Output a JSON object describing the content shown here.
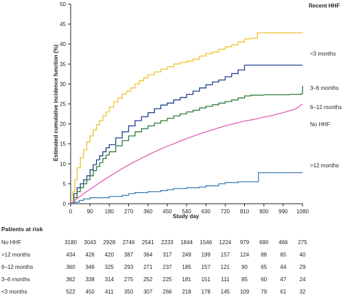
{
  "chart_data": {
    "type": "line",
    "title": "",
    "xlabel": "Study day",
    "ylabel": "Estimated cumulative incidence function (%)",
    "xlim": [
      0,
      1080
    ],
    "ylim": [
      0,
      50
    ],
    "xticks": [
      0,
      90,
      180,
      270,
      360,
      450,
      540,
      630,
      720,
      810,
      900,
      990,
      1080
    ],
    "yticks": [
      0,
      5,
      10,
      15,
      20,
      25,
      30,
      35,
      40,
      45,
      50
    ],
    "grid": false,
    "legend_title": "Recent HHF",
    "legend_placement": "right",
    "series": [
      {
        "name": "<3 months",
        "color": "#f2c12e",
        "step": true,
        "x": [
          0,
          10,
          20,
          30,
          45,
          60,
          75,
          90,
          105,
          120,
          135,
          150,
          165,
          180,
          200,
          220,
          240,
          260,
          280,
          300,
          320,
          340,
          360,
          390,
          420,
          450,
          480,
          510,
          540,
          570,
          600,
          630,
          660,
          690,
          720,
          750,
          780,
          810,
          840,
          870,
          900,
          930,
          960,
          990,
          1020,
          1050,
          1080
        ],
        "y": [
          0,
          3,
          6,
          9,
          11.5,
          13.5,
          15.5,
          17,
          18.5,
          19.8,
          20.8,
          22,
          23,
          24.2,
          25.5,
          26.5,
          27.5,
          28.2,
          29,
          30,
          30.8,
          31.5,
          32.3,
          33,
          33.7,
          34.3,
          35,
          35.4,
          35.7,
          36.2,
          37,
          37.6,
          38,
          38.7,
          39.3,
          39.8,
          40.5,
          41.3,
          41.5,
          42.8,
          42.8,
          42.8,
          42.8,
          42.8,
          42.8,
          42.8,
          42.8
        ]
      },
      {
        "name": "3–6 months",
        "color": "#1f3d8f",
        "step": true,
        "x": [
          0,
          15,
          30,
          45,
          60,
          75,
          90,
          105,
          120,
          135,
          150,
          165,
          180,
          210,
          240,
          270,
          300,
          330,
          360,
          390,
          420,
          450,
          480,
          510,
          540,
          570,
          600,
          630,
          660,
          690,
          720,
          750,
          780,
          810,
          840,
          870,
          900,
          960,
          1020,
          1080
        ],
        "y": [
          0,
          2.5,
          4,
          5,
          6,
          7,
          8.5,
          9.8,
          11,
          12,
          13,
          14,
          14.8,
          16.5,
          18,
          19.5,
          20.8,
          21.8,
          22.8,
          23.8,
          24.7,
          25.2,
          26,
          26.6,
          27.4,
          28.2,
          29,
          29.8,
          30.5,
          31,
          31.8,
          32.6,
          33.5,
          34.7,
          34.7,
          34.7,
          34.7,
          34.7,
          34.7,
          34.7
        ]
      },
      {
        "name": "6–12 months",
        "color": "#2d7a3a",
        "step": true,
        "x": [
          0,
          15,
          30,
          45,
          60,
          75,
          90,
          105,
          120,
          135,
          150,
          165,
          180,
          210,
          240,
          270,
          300,
          330,
          360,
          390,
          420,
          450,
          480,
          510,
          540,
          570,
          600,
          630,
          660,
          690,
          720,
          750,
          780,
          810,
          840,
          870,
          900,
          960,
          1020,
          1075,
          1080
        ],
        "y": [
          0,
          1.5,
          3,
          4,
          5,
          6,
          7,
          8.3,
          9.3,
          10.3,
          11.3,
          12.2,
          13,
          14.5,
          15.8,
          17,
          18,
          18.8,
          19.5,
          20.2,
          20.8,
          21.4,
          22,
          22.5,
          23,
          23.4,
          24,
          24.4,
          24.8,
          25.2,
          25.6,
          26,
          26.5,
          27,
          27.2,
          27.2,
          27.3,
          27.3,
          27.4,
          27.5,
          29.5
        ]
      },
      {
        "name": "No HHF",
        "color": "#e05cb4",
        "step": false,
        "x": [
          0,
          30,
          60,
          90,
          120,
          150,
          180,
          210,
          240,
          270,
          300,
          330,
          360,
          390,
          420,
          450,
          480,
          510,
          540,
          570,
          600,
          630,
          660,
          690,
          720,
          750,
          780,
          810,
          840,
          870,
          900,
          930,
          960,
          990,
          1020,
          1050,
          1080
        ],
        "y": [
          0,
          1.3,
          2.5,
          3.6,
          4.7,
          5.8,
          6.8,
          7.8,
          8.8,
          9.7,
          10.6,
          11.4,
          12.2,
          13,
          13.7,
          14.4,
          15,
          15.7,
          16.3,
          16.9,
          17.5,
          18,
          18.5,
          19,
          19.5,
          19.9,
          20.3,
          20.7,
          21,
          21.3,
          21.7,
          22,
          22.4,
          22.8,
          23.3,
          23.8,
          25
        ]
      },
      {
        "name": ">12 months",
        "color": "#3f7fb5",
        "step": true,
        "x": [
          0,
          20,
          40,
          60,
          90,
          180,
          240,
          270,
          300,
          360,
          420,
          450,
          480,
          540,
          600,
          630,
          690,
          720,
          780,
          870,
          875,
          900,
          1080
        ],
        "y": [
          0,
          0.4,
          0.8,
          1.2,
          1.5,
          1.8,
          2.1,
          2.5,
          2.8,
          3.0,
          3.3,
          3.5,
          3.8,
          4.0,
          4.2,
          4.5,
          5.0,
          5.3,
          5.5,
          5.5,
          7.8,
          7.8,
          7.8
        ]
      }
    ]
  },
  "series_labels": {
    "lt3": "<3 months",
    "m3_6": "3–6 months",
    "m6_12": "6–12 months",
    "no_hhf": "No HHF",
    "gt12": ">12 months"
  },
  "risk_table": {
    "title": "Patients at risk",
    "rows": [
      {
        "label": "No HHF",
        "values": [
          3180,
          3043,
          2928,
          2746,
          2541,
          2233,
          1844,
          1546,
          1224,
          979,
          690,
          466,
          275
        ]
      },
      {
        "label": ">12 months",
        "values": [
          434,
          426,
          420,
          387,
          364,
          317,
          249,
          199,
          157,
          124,
          88,
          65,
          40
        ]
      },
      {
        "label": "6–12 months",
        "values": [
          360,
          346,
          325,
          293,
          271,
          237,
          185,
          157,
          121,
          90,
          65,
          44,
          29
        ]
      },
      {
        "label": "3–6 months",
        "values": [
          362,
          338,
          314,
          275,
          252,
          225,
          181,
          151,
          111,
          85,
          60,
          47,
          24
        ]
      },
      {
        "label": "<3 months",
        "values": [
          522,
          450,
          411,
          350,
          307,
          266,
          218,
          178,
          145,
          109,
          79,
          61,
          32
        ]
      }
    ]
  }
}
